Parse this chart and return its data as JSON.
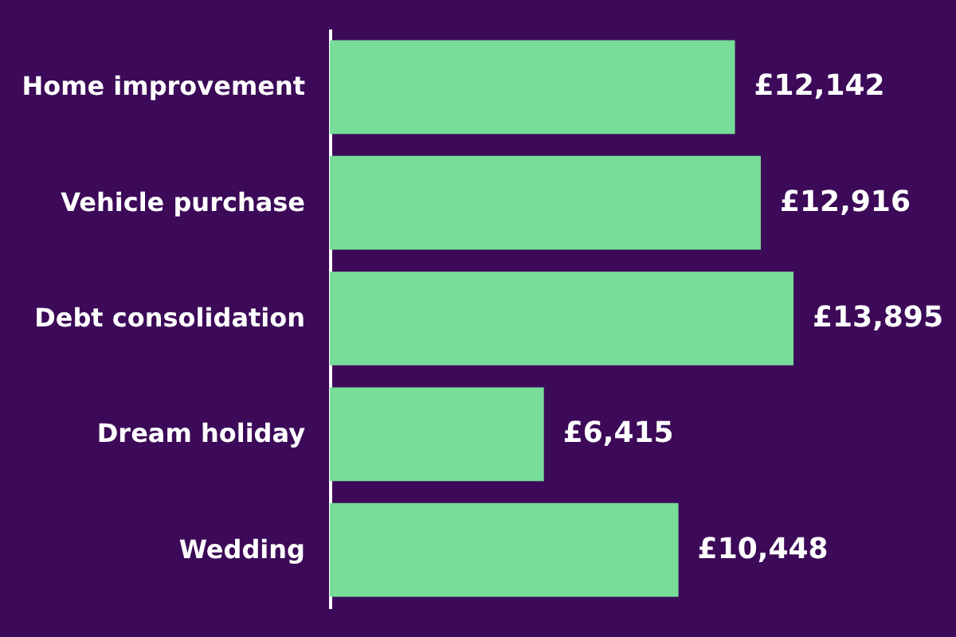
{
  "chart_data": {
    "type": "bar",
    "orientation": "horizontal",
    "categories": [
      "Home improvement",
      "Vehicle purchase",
      "Debt consolidation",
      "Dream holiday",
      "Wedding"
    ],
    "values": [
      12142,
      12916,
      13895,
      6415,
      10448
    ],
    "value_labels": [
      "£12,142",
      "£12,916",
      "£13,895",
      "£6,415",
      "£10,448"
    ],
    "color": "#77dd99"
  }
}
